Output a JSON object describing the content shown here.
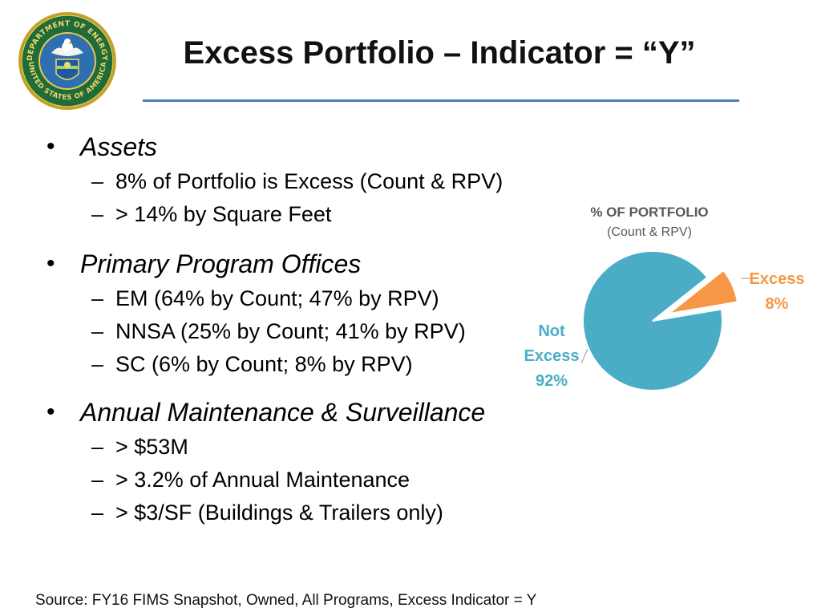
{
  "header": {
    "title": "Excess Portfolio – Indicator = “Y”",
    "seal_icon": "department-of-energy-seal",
    "accent_color": "#4a7ebb"
  },
  "body": {
    "sections": [
      {
        "heading": "Assets",
        "items": [
          "8% of Portfolio is Excess (Count & RPV)",
          "> 14% by Square Feet"
        ]
      },
      {
        "heading": "Primary Program Offices",
        "items": [
          "EM (64% by Count; 47% by RPV)",
          "NNSA (25% by Count; 41% by RPV)",
          "SC (6% by Count; 8% by RPV)"
        ]
      },
      {
        "heading": "Annual Maintenance & Surveillance",
        "items": [
          "> $53M",
          "> 3.2% of Annual Maintenance",
          "> $3/SF (Buildings & Trailers only)"
        ]
      }
    ],
    "bullet_glyph": "•",
    "dash_glyph": "–"
  },
  "chart_data": {
    "type": "pie",
    "title": "% OF PORTFOLIO",
    "subtitle": "(Count & RPV)",
    "categories": [
      "Not Excess",
      "Excess"
    ],
    "values": [
      92,
      8
    ],
    "value_labels": [
      "92%",
      "8%"
    ],
    "colors": [
      "#4bacc6",
      "#f79646"
    ],
    "exploded": [
      "Excess"
    ]
  },
  "footer": {
    "source": "Source: FY16 FIMS Snapshot, Owned, All Programs, Excess Indicator = Y"
  }
}
